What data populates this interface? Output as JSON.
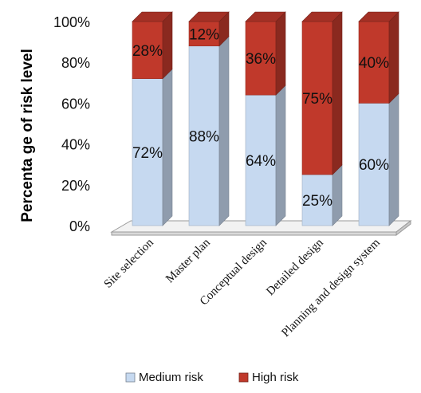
{
  "chart_data": {
    "type": "bar",
    "stacked": true,
    "three_d": true,
    "categories": [
      "Site selection",
      "Master plan",
      "Conceptual design",
      "Detailed design",
      "Planning and design system"
    ],
    "series": [
      {
        "name": "Medium risk",
        "values": [
          72,
          88,
          64,
          25,
          60
        ],
        "labels": [
          "72%",
          "88%",
          "64%",
          "25%",
          "60%"
        ],
        "color": "#c6d9f0"
      },
      {
        "name": "High risk",
        "values": [
          28,
          12,
          36,
          75,
          40
        ],
        "labels": [
          "28%",
          "12%",
          "36%",
          "75%",
          "40%"
        ],
        "color": "#c0392b"
      }
    ],
    "ylabel": "Percenta ge of risk level",
    "yticks": [
      "0%",
      "20%",
      "40%",
      "60%",
      "80%",
      "100%"
    ],
    "ylim": [
      0,
      100
    ],
    "legend_position": "bottom",
    "grid": false
  }
}
